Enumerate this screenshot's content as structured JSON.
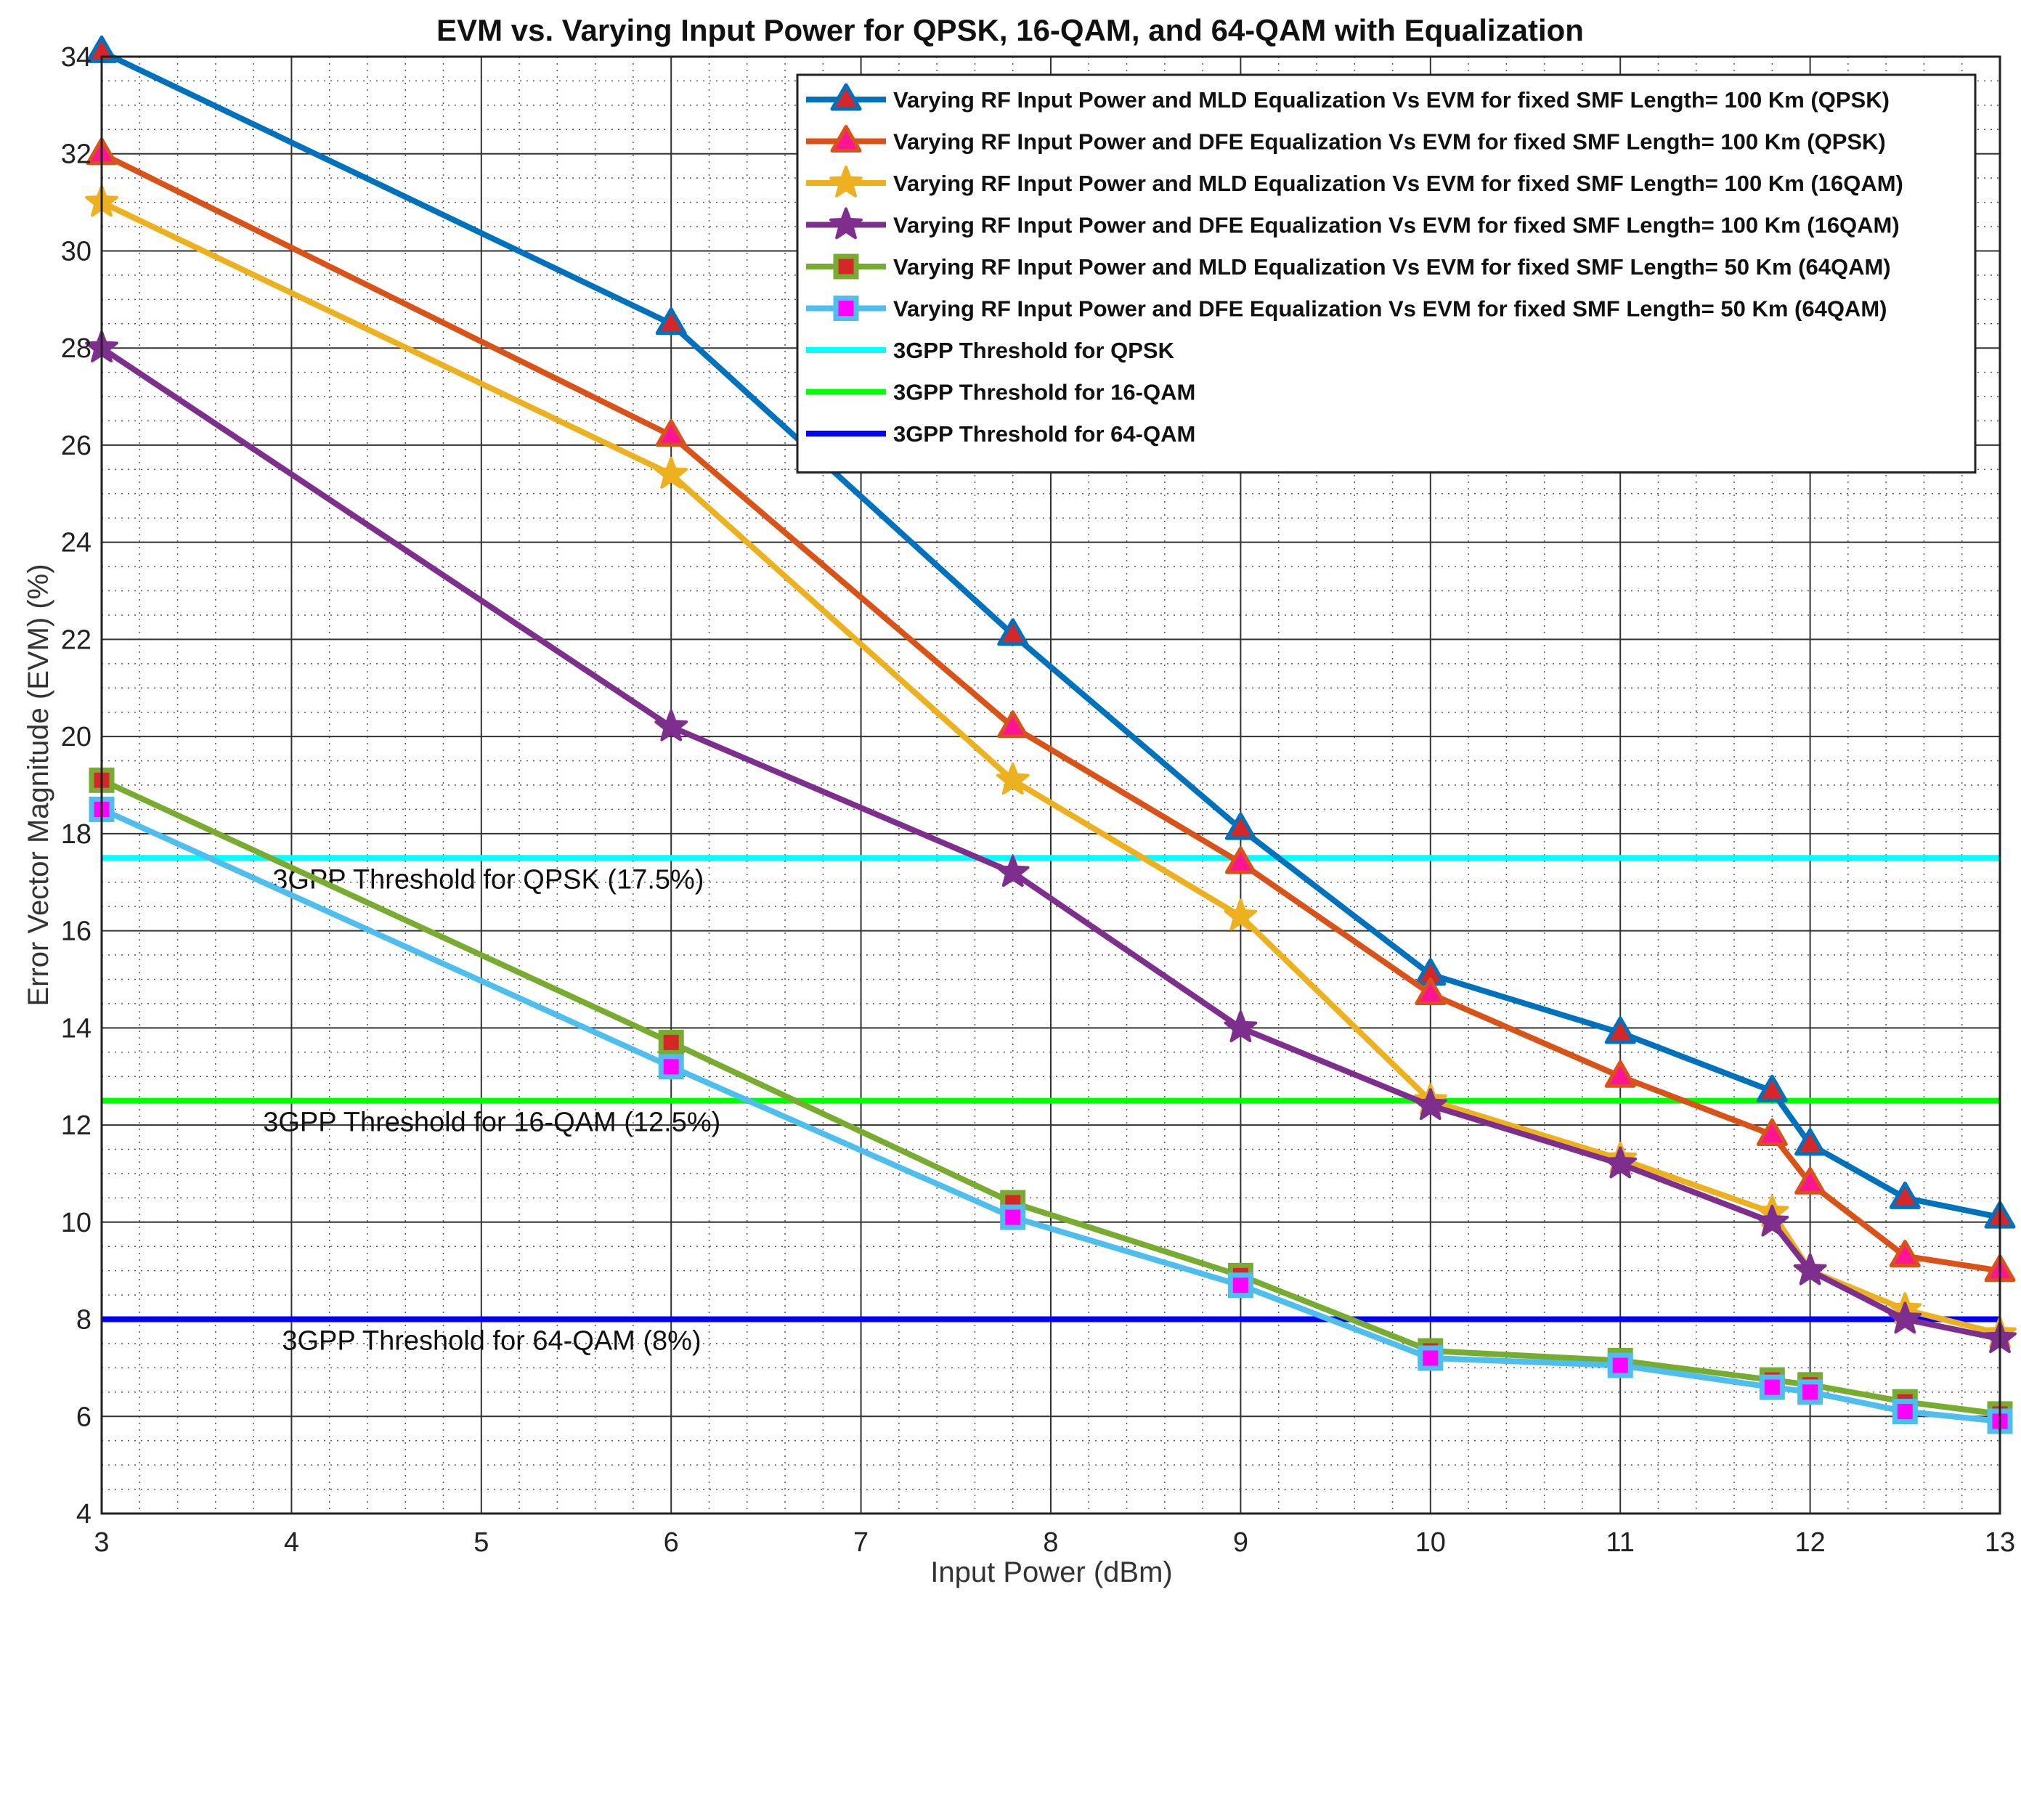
{
  "chart_data": {
    "type": "line",
    "title": "EVM vs. Varying Input Power for QPSK, 16-QAM, and 64-QAM with Equalization",
    "xlabel": "Input Power (dBm)",
    "ylabel": "Error Vector Magnitude (EVM) (%)",
    "xlim": [
      3,
      13
    ],
    "ylim": [
      4,
      34
    ],
    "xticks": [
      3,
      4,
      5,
      6,
      7,
      8,
      9,
      10,
      11,
      12,
      13
    ],
    "yticks": [
      4,
      6,
      8,
      10,
      12,
      14,
      16,
      18,
      20,
      22,
      24,
      26,
      28,
      30,
      32,
      34
    ],
    "grid": true,
    "minor_grid": true,
    "legend_position": "top-right",
    "x": [
      3,
      6,
      7.8,
      9,
      10,
      11,
      11.8,
      12,
      12.5,
      13
    ],
    "series": [
      {
        "name": "Varying RF Input Power and MLD Equalization Vs EVM for fixed SMF Length= 100 Km (QPSK)",
        "color": "#0072BD",
        "marker": "triangle",
        "marker_face": "#D62728",
        "values": [
          34.1,
          28.5,
          22.1,
          18.1,
          15.1,
          13.9,
          12.7,
          11.6,
          10.5,
          10.1
        ]
      },
      {
        "name": "Varying RF Input Power and DFE Equalization Vs EVM for fixed SMF Length= 100 Km (QPSK)",
        "color": "#D95319",
        "marker": "triangle",
        "marker_face": "#FF1493",
        "values": [
          32.0,
          26.2,
          20.2,
          17.4,
          14.7,
          13.0,
          11.8,
          10.8,
          9.3,
          9.0
        ]
      },
      {
        "name": "Varying RF Input Power and MLD Equalization Vs EVM for fixed SMF Length= 100 Km (16QAM)",
        "color": "#EDB120",
        "marker": "star",
        "marker_face": "#EDB120",
        "values": [
          31.0,
          25.4,
          19.1,
          16.3,
          12.5,
          11.3,
          10.2,
          9.0,
          8.2,
          7.7
        ]
      },
      {
        "name": "Varying RF Input Power and DFE Equalization Vs EVM for fixed SMF Length= 100 Km (16QAM)",
        "color": "#7E2F8E",
        "marker": "star",
        "marker_face": "#7E2F8E",
        "values": [
          28.0,
          20.2,
          17.2,
          14.0,
          12.4,
          11.2,
          10.0,
          9.0,
          8.0,
          7.6
        ]
      },
      {
        "name": "Varying RF Input Power and MLD Equalization Vs EVM for fixed SMF Length= 50 Km  (64QAM)",
        "color": "#77AC30",
        "marker": "square",
        "marker_face": "#D62728",
        "values": [
          19.1,
          13.7,
          10.4,
          8.9,
          7.35,
          7.15,
          6.75,
          6.65,
          6.3,
          6.05
        ]
      },
      {
        "name": "Varying RF Input Power and DFE Equalization Vs EVM for fixed SMF Length= 50 Km (64QAM)",
        "color": "#4DBEEE",
        "marker": "square",
        "marker_face": "#FF00FF",
        "values": [
          18.5,
          13.2,
          10.1,
          8.7,
          7.2,
          7.05,
          6.6,
          6.5,
          6.1,
          5.9
        ]
      }
    ],
    "thresholds": [
      {
        "name": "3GPP Threshold for QPSK",
        "value": 17.5,
        "color": "#00FFFF",
        "annotation": "3GPP Threshold for QPSK (17.5%)",
        "annotation_x": 3.9
      },
      {
        "name": "3GPP Threshold for 16-QAM",
        "value": 12.5,
        "color": "#00FF00",
        "annotation": "3GPP Threshold for 16-QAM (12.5%)",
        "annotation_x": 3.85
      },
      {
        "name": "3GPP Threshold for 64-QAM",
        "value": 8.0,
        "color": "#0000FF",
        "annotation": "3GPP Threshold for 64-QAM (8%)",
        "annotation_x": 3.95
      }
    ]
  }
}
